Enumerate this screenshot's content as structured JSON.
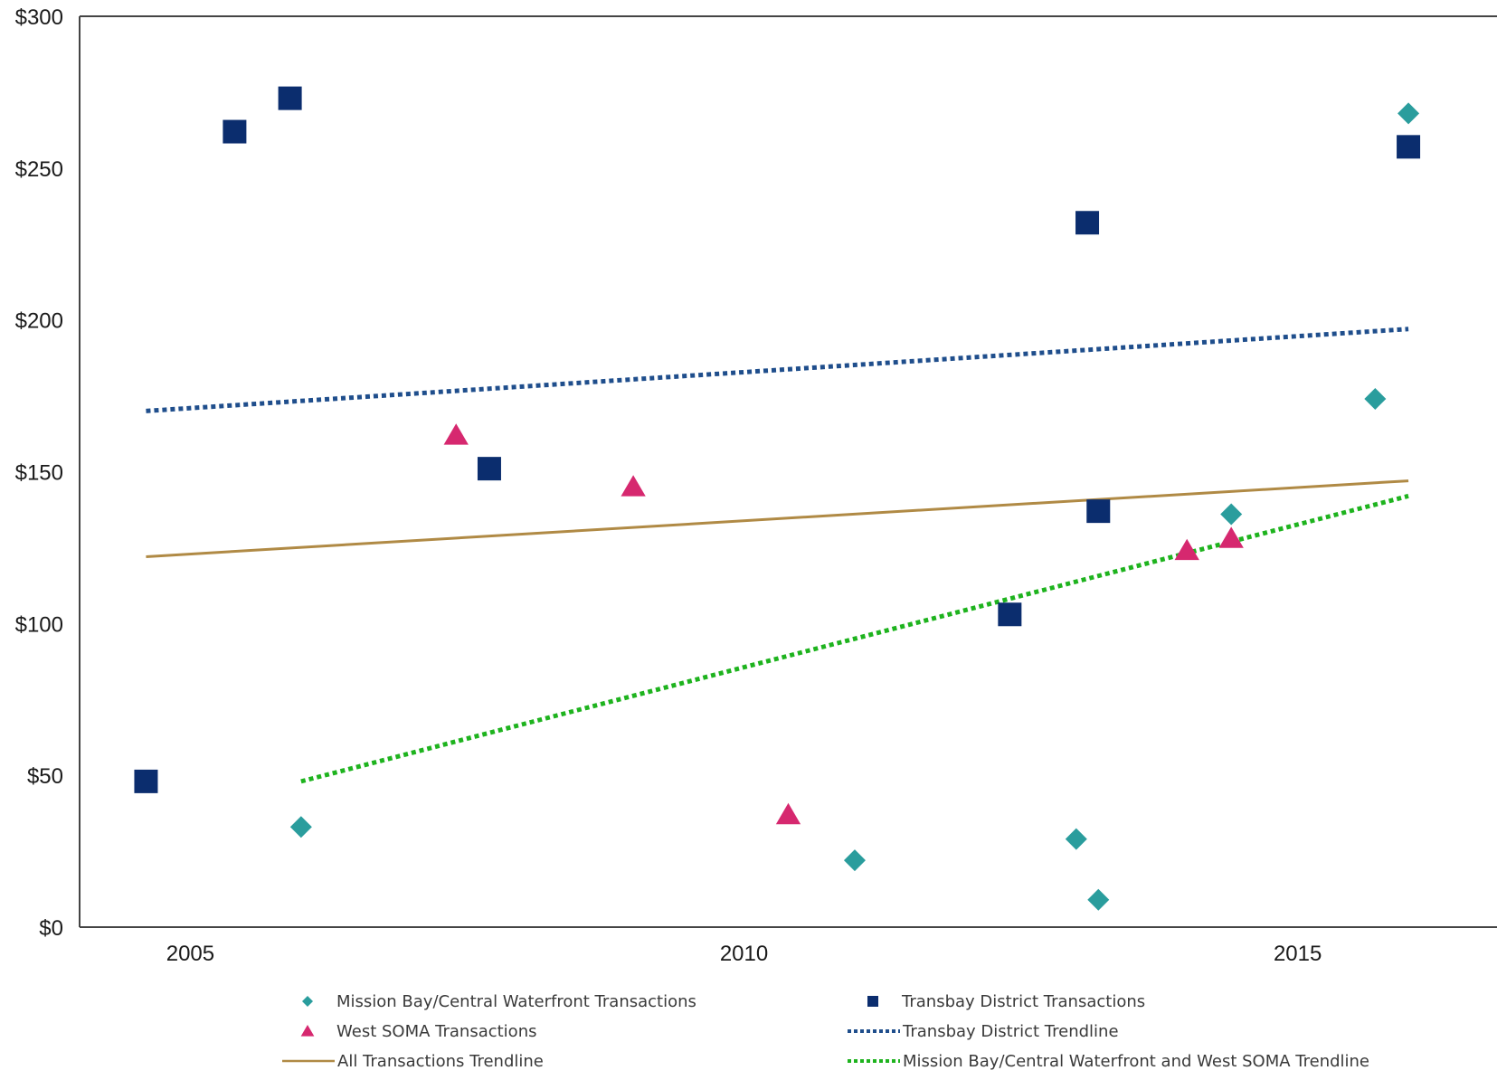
{
  "chart_data": {
    "type": "scatter",
    "xlim": [
      2004.0,
      2016.8
    ],
    "ylim": [
      0,
      300
    ],
    "y_ticks": [
      {
        "value": 0,
        "label": "$0"
      },
      {
        "value": 50,
        "label": "$50"
      },
      {
        "value": 100,
        "label": "$100"
      },
      {
        "value": 150,
        "label": "$150"
      },
      {
        "value": 200,
        "label": "$200"
      },
      {
        "value": 250,
        "label": "$250"
      },
      {
        "value": 300,
        "label": "$300"
      }
    ],
    "x_ticks": [
      {
        "value": 2005,
        "label": "2005"
      },
      {
        "value": 2010,
        "label": "2010"
      },
      {
        "value": 2015,
        "label": "2015"
      }
    ],
    "grid": false,
    "legend_position": "bottom",
    "series": [
      {
        "name": "Mission Bay/Central Waterfront Transactions",
        "kind": "points",
        "marker": "diamond",
        "color": "#2a9d9d",
        "points": [
          {
            "x": 2006.0,
            "y": 33
          },
          {
            "x": 2011.0,
            "y": 22
          },
          {
            "x": 2013.0,
            "y": 29
          },
          {
            "x": 2013.2,
            "y": 9
          },
          {
            "x": 2014.4,
            "y": 136
          },
          {
            "x": 2015.7,
            "y": 174
          },
          {
            "x": 2016.0,
            "y": 268
          }
        ]
      },
      {
        "name": "Transbay District Transactions",
        "kind": "points",
        "marker": "square",
        "color": "#0b2d6e",
        "points": [
          {
            "x": 2004.6,
            "y": 48
          },
          {
            "x": 2005.4,
            "y": 262
          },
          {
            "x": 2005.9,
            "y": 273
          },
          {
            "x": 2007.7,
            "y": 151
          },
          {
            "x": 2012.4,
            "y": 103
          },
          {
            "x": 2013.1,
            "y": 232
          },
          {
            "x": 2013.2,
            "y": 137
          },
          {
            "x": 2016.0,
            "y": 257
          }
        ]
      },
      {
        "name": "West SOMA Transactions",
        "kind": "points",
        "marker": "triangle",
        "color": "#d6286f",
        "points": [
          {
            "x": 2007.4,
            "y": 162
          },
          {
            "x": 2009.0,
            "y": 145
          },
          {
            "x": 2010.4,
            "y": 37
          },
          {
            "x": 2014.0,
            "y": 124
          },
          {
            "x": 2014.4,
            "y": 128
          }
        ]
      },
      {
        "name": "Transbay District Trendline",
        "kind": "line",
        "style": "dotted",
        "color": "#1f4e8c",
        "points": [
          {
            "x": 2004.6,
            "y": 170
          },
          {
            "x": 2016.0,
            "y": 197
          }
        ]
      },
      {
        "name": "All Transactions Trendline",
        "kind": "line",
        "style": "solid",
        "color": "#b08a45",
        "points": [
          {
            "x": 2004.6,
            "y": 122
          },
          {
            "x": 2016.0,
            "y": 147
          }
        ]
      },
      {
        "name": "Mission Bay/Central Waterfront and West SOMA Trendline",
        "kind": "line",
        "style": "dotted",
        "color": "#1eb31e",
        "points": [
          {
            "x": 2006.0,
            "y": 48
          },
          {
            "x": 2016.0,
            "y": 142
          }
        ]
      }
    ],
    "legend_order": [
      0,
      1,
      2,
      3,
      4,
      5
    ]
  }
}
